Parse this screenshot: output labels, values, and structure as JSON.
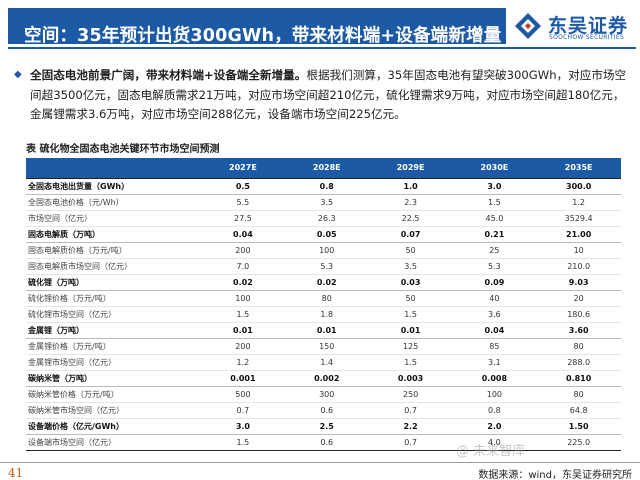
{
  "header": {
    "title": "空间：35年预计出货300GWh，带来材料端+设备端新增量",
    "logo_cn": "东吴证券",
    "logo_en": "SOOCHOW SECURITIES"
  },
  "summary": {
    "bold": "全固态电池前景广阔，带来材料端+设备端全新增量。",
    "text": "根据我们测算，35年固态电池有望突破300GWh，对应市场空间超3500亿元，固态电解质需求21万吨，对应市场空间超210亿元，硫化锂需求9万吨，对应市场空间超180亿元，金属锂需求3.6万吨，对应市场空间288亿元，设备端市场空间225亿元。"
  },
  "table": {
    "title": "表 硫化物全固态电池关键环节市场空间预测",
    "columns": [
      "",
      "2027E",
      "2028E",
      "2029E",
      "2030E",
      "2035E"
    ],
    "rows": [
      {
        "group": true,
        "cells": [
          "全固态电池出货量（GWh）",
          "0.5",
          "0.8",
          "1.0",
          "3.0",
          "300.0"
        ]
      },
      {
        "group": false,
        "cells": [
          "全固态电池价格（元/Wh）",
          "5.5",
          "3.5",
          "2.3",
          "1.5",
          "1.2"
        ]
      },
      {
        "group": false,
        "cells": [
          "市场空间（亿元）",
          "27.5",
          "26.3",
          "22.5",
          "45.0",
          "3529.4"
        ]
      },
      {
        "group": true,
        "cells": [
          "固态电解质（万吨）",
          "0.04",
          "0.05",
          "0.07",
          "0.21",
          "21.00"
        ]
      },
      {
        "group": false,
        "cells": [
          "固态电解质价格（万元/吨）",
          "200",
          "100",
          "50",
          "25",
          "10"
        ]
      },
      {
        "group": false,
        "cells": [
          "固态电解质市场空间（亿元）",
          "7.0",
          "5.3",
          "3.5",
          "5.3",
          "210.0"
        ]
      },
      {
        "group": true,
        "cells": [
          "硫化锂（万吨）",
          "0.02",
          "0.02",
          "0.03",
          "0.09",
          "9.03"
        ]
      },
      {
        "group": false,
        "cells": [
          "硫化锂价格（万元/吨）",
          "100",
          "80",
          "50",
          "40",
          "20"
        ]
      },
      {
        "group": false,
        "cells": [
          "硫化锂市场空间（亿元）",
          "1.5",
          "1.8",
          "1.5",
          "3.6",
          "180.6"
        ]
      },
      {
        "group": true,
        "cells": [
          "金属锂（万吨）",
          "0.01",
          "0.01",
          "0.01",
          "0.04",
          "3.60"
        ]
      },
      {
        "group": false,
        "cells": [
          "金属锂价格（万元/吨）",
          "200",
          "150",
          "125",
          "85",
          "80"
        ]
      },
      {
        "group": false,
        "cells": [
          "金属锂市场空间（亿元）",
          "1.2",
          "1.4",
          "1.5",
          "3.1",
          "288.0"
        ]
      },
      {
        "group": true,
        "cells": [
          "碳纳米管（万吨）",
          "0.001",
          "0.002",
          "0.003",
          "0.008",
          "0.810"
        ]
      },
      {
        "group": false,
        "cells": [
          "碳纳米管价格（万元/吨）",
          "500",
          "300",
          "250",
          "100",
          "80"
        ]
      },
      {
        "group": false,
        "cells": [
          "碳纳米管市场空间（亿元）",
          "0.7",
          "0.6",
          "0.7",
          "0.8",
          "64.8"
        ]
      },
      {
        "group": true,
        "cells": [
          "设备端价格（亿元/GWh）",
          "3.0",
          "2.5",
          "2.2",
          "2.0",
          "1.50"
        ]
      },
      {
        "group": false,
        "cells": [
          "设备端市场空间（亿元）",
          "1.5",
          "0.6",
          "0.7",
          "4.0",
          "225.0"
        ]
      }
    ]
  },
  "footer": {
    "page": "41",
    "source": "数据来源：wind，东吴证券研究所",
    "watermark": "@ 未来智库"
  },
  "colors": {
    "brand": "#1c5aa6",
    "page_number": "#c05a10"
  }
}
